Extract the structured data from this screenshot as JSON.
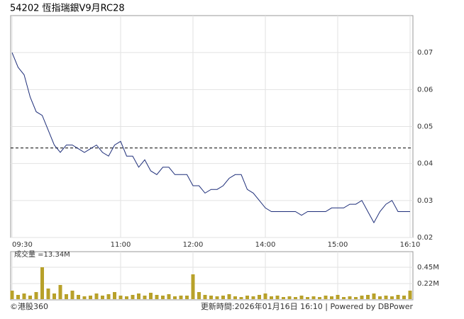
{
  "chart_data": [
    {
      "type": "line",
      "title": "54202 恆指瑞銀V9月RC28",
      "categories": [
        "09:30",
        null,
        null,
        null,
        null,
        null,
        null,
        null,
        null,
        null,
        null,
        null,
        null,
        null,
        null,
        null,
        null,
        null,
        "11:00",
        null,
        null,
        null,
        null,
        null,
        null,
        null,
        null,
        null,
        null,
        null,
        "12:00",
        null,
        null,
        null,
        null,
        null,
        null,
        null,
        null,
        null,
        null,
        null,
        "14:00",
        null,
        null,
        null,
        null,
        null,
        null,
        null,
        null,
        null,
        null,
        null,
        "15:00",
        null,
        null,
        null,
        null,
        null,
        null,
        null,
        null,
        null,
        null,
        null,
        "16:10"
      ],
      "series": [
        {
          "color": "#1f2f7a",
          "values": [
            0.07,
            0.066,
            0.064,
            0.058,
            0.054,
            0.053,
            0.049,
            0.045,
            0.043,
            0.045,
            0.045,
            0.044,
            0.043,
            0.044,
            0.045,
            0.043,
            0.042,
            0.045,
            0.046,
            0.042,
            0.042,
            0.039,
            0.041,
            0.038,
            0.037,
            0.039,
            0.039,
            0.037,
            0.037,
            0.037,
            0.034,
            0.034,
            0.032,
            0.033,
            0.033,
            0.034,
            0.036,
            0.037,
            0.037,
            0.033,
            0.032,
            0.03,
            0.028,
            0.027,
            0.027,
            0.027,
            0.027,
            0.027,
            0.026,
            0.027,
            0.027,
            0.027,
            0.027,
            0.028,
            0.028,
            0.028,
            0.029,
            0.029,
            0.03,
            0.027,
            0.024,
            0.027,
            0.029,
            0.03,
            0.027,
            0.027,
            0.027
          ]
        }
      ],
      "reference_line": 0.0442,
      "ylim": [
        0.02,
        0.08
      ],
      "yticks": [
        0.02,
        0.03,
        0.04,
        0.05,
        0.06,
        0.07
      ],
      "grid": true
    },
    {
      "type": "bar",
      "annotation": "成交量 =13.34M",
      "color": "#b8a12a",
      "values": [
        0.12,
        0.06,
        0.08,
        0.05,
        0.1,
        0.45,
        0.15,
        0.08,
        0.2,
        0.07,
        0.12,
        0.06,
        0.04,
        0.05,
        0.08,
        0.05,
        0.07,
        0.1,
        0.05,
        0.04,
        0.06,
        0.08,
        0.05,
        0.09,
        0.06,
        0.05,
        0.07,
        0.04,
        0.05,
        0.05,
        0.35,
        0.1,
        0.06,
        0.05,
        0.04,
        0.05,
        0.07,
        0.04,
        0.03,
        0.05,
        0.04,
        0.06,
        0.08,
        0.04,
        0.05,
        0.03,
        0.04,
        0.03,
        0.05,
        0.03,
        0.04,
        0.03,
        0.05,
        0.04,
        0.06,
        0.03,
        0.04,
        0.03,
        0.05,
        0.06,
        0.08,
        0.04,
        0.05,
        0.04,
        0.06,
        0.05,
        0.12
      ],
      "ylim": [
        0,
        0.67
      ],
      "yticks": [
        {
          "value": 0.22,
          "label": "0.22M"
        },
        {
          "value": 0.45,
          "label": "0.45M"
        }
      ]
    }
  ],
  "footer": {
    "copyright": "©港股360",
    "updated": "更新時間:2026年01月16日 16:10 | Powered by DBPower"
  }
}
